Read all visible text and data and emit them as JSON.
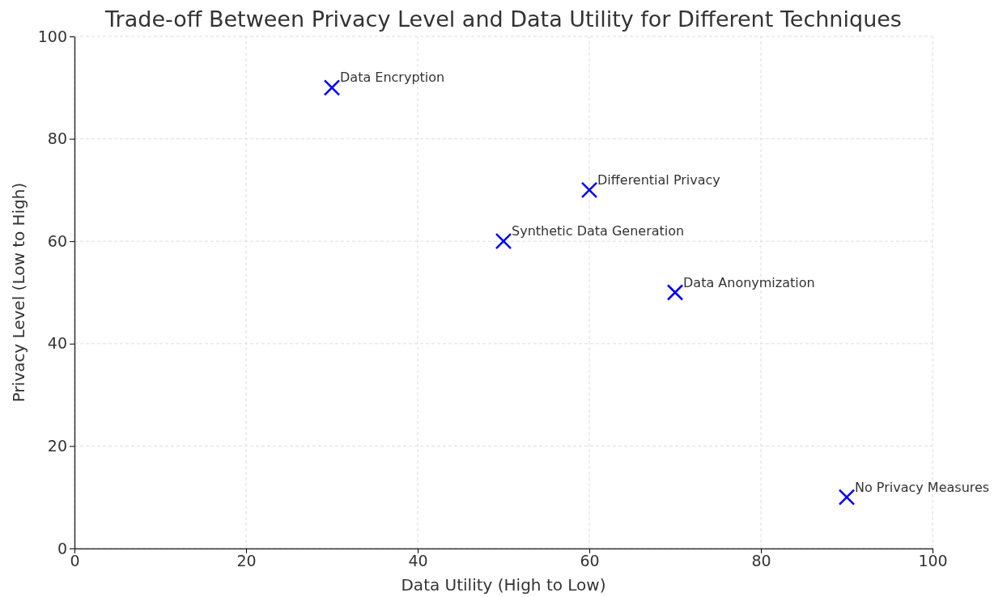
{
  "chart_data": {
    "type": "scatter",
    "title": "Trade-off Between Privacy Level and Data Utility for Different Techniques",
    "xlabel": "Data Utility (High to Low)",
    "ylabel": "Privacy Level (Low to High)",
    "x": [
      30,
      60,
      50,
      70,
      90
    ],
    "series": [
      {
        "color": "#0000ff",
        "values": [
          90,
          70,
          60,
          50,
          10
        ]
      }
    ],
    "xlim": [
      0,
      100
    ],
    "ylim": [
      0,
      100
    ],
    "xticks": [
      0,
      20,
      40,
      60,
      80,
      100
    ],
    "yticks": [
      0,
      20,
      40,
      60,
      80,
      100
    ],
    "grid": true,
    "marker": "cross",
    "annotations": [
      {
        "text": "Data Encryption",
        "x": 30,
        "y": 90
      },
      {
        "text": "Differential Privacy",
        "x": 60,
        "y": 70
      },
      {
        "text": "Synthetic Data Generation",
        "x": 50,
        "y": 60
      },
      {
        "text": "Data Anonymization",
        "x": 70,
        "y": 50
      },
      {
        "text": "No Privacy Measures",
        "x": 90,
        "y": 10
      }
    ]
  }
}
